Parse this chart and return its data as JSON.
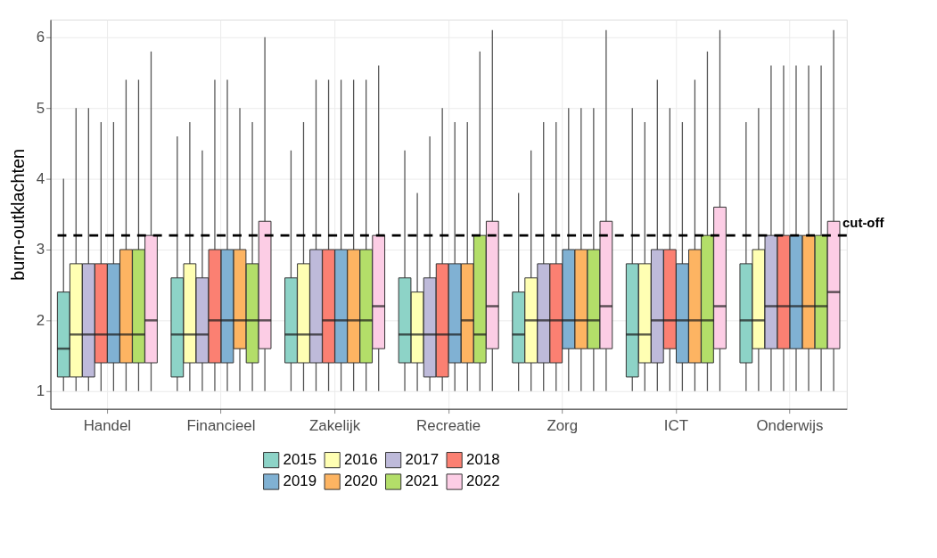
{
  "chart_data": {
    "type": "box",
    "ylabel": "burn-outklachten",
    "categories": [
      "Handel",
      "Financieel",
      "Zakelijk",
      "Recreatie",
      "Zorg",
      "ICT",
      "Onderwijs"
    ],
    "series": [
      {
        "name": "2015",
        "color": "#8dd3c7",
        "boxes": [
          {
            "low": 1.0,
            "q1": 1.2,
            "median": 1.6,
            "q3": 2.4,
            "high": 4.0
          },
          {
            "low": 1.0,
            "q1": 1.2,
            "median": 1.8,
            "q3": 2.6,
            "high": 4.6
          },
          {
            "low": 1.0,
            "q1": 1.4,
            "median": 1.8,
            "q3": 2.6,
            "high": 4.4
          },
          {
            "low": 1.0,
            "q1": 1.4,
            "median": 1.8,
            "q3": 2.6,
            "high": 4.4
          },
          {
            "low": 1.0,
            "q1": 1.4,
            "median": 1.8,
            "q3": 2.4,
            "high": 3.8
          },
          {
            "low": 1.0,
            "q1": 1.2,
            "median": 1.8,
            "q3": 2.8,
            "high": 5.0
          },
          {
            "low": 1.0,
            "q1": 1.4,
            "median": 2.0,
            "q3": 2.8,
            "high": 4.8
          }
        ]
      },
      {
        "name": "2016",
        "color": "#ffffb3",
        "boxes": [
          {
            "low": 1.0,
            "q1": 1.2,
            "median": 1.8,
            "q3": 2.8,
            "high": 5.0
          },
          {
            "low": 1.0,
            "q1": 1.4,
            "median": 1.8,
            "q3": 2.8,
            "high": 4.8
          },
          {
            "low": 1.0,
            "q1": 1.4,
            "median": 1.8,
            "q3": 2.8,
            "high": 4.8
          },
          {
            "low": 1.0,
            "q1": 1.4,
            "median": 1.8,
            "q3": 2.4,
            "high": 3.8
          },
          {
            "low": 1.0,
            "q1": 1.4,
            "median": 2.0,
            "q3": 2.6,
            "high": 4.4
          },
          {
            "low": 1.0,
            "q1": 1.4,
            "median": 1.8,
            "q3": 2.8,
            "high": 4.8
          },
          {
            "low": 1.0,
            "q1": 1.6,
            "median": 2.0,
            "q3": 3.0,
            "high": 5.0
          }
        ]
      },
      {
        "name": "2017",
        "color": "#bebada",
        "boxes": [
          {
            "low": 1.0,
            "q1": 1.2,
            "median": 1.8,
            "q3": 2.8,
            "high": 5.0
          },
          {
            "low": 1.0,
            "q1": 1.4,
            "median": 1.8,
            "q3": 2.6,
            "high": 4.4
          },
          {
            "low": 1.0,
            "q1": 1.4,
            "median": 1.8,
            "q3": 3.0,
            "high": 5.4
          },
          {
            "low": 1.0,
            "q1": 1.2,
            "median": 1.8,
            "q3": 2.6,
            "high": 4.6
          },
          {
            "low": 1.0,
            "q1": 1.4,
            "median": 2.0,
            "q3": 2.8,
            "high": 4.8
          },
          {
            "low": 1.0,
            "q1": 1.4,
            "median": 2.0,
            "q3": 3.0,
            "high": 5.4
          },
          {
            "low": 1.0,
            "q1": 1.6,
            "median": 2.2,
            "q3": 3.2,
            "high": 5.6
          }
        ]
      },
      {
        "name": "2018",
        "color": "#fb8072",
        "boxes": [
          {
            "low": 1.0,
            "q1": 1.4,
            "median": 1.8,
            "q3": 2.8,
            "high": 4.8
          },
          {
            "low": 1.0,
            "q1": 1.4,
            "median": 2.0,
            "q3": 3.0,
            "high": 5.4
          },
          {
            "low": 1.0,
            "q1": 1.4,
            "median": 2.0,
            "q3": 3.0,
            "high": 5.4
          },
          {
            "low": 1.0,
            "q1": 1.2,
            "median": 1.8,
            "q3": 2.8,
            "high": 5.0
          },
          {
            "low": 1.0,
            "q1": 1.4,
            "median": 2.0,
            "q3": 2.8,
            "high": 4.8
          },
          {
            "low": 1.0,
            "q1": 1.6,
            "median": 2.0,
            "q3": 3.0,
            "high": 5.0
          },
          {
            "low": 1.0,
            "q1": 1.6,
            "median": 2.2,
            "q3": 3.2,
            "high": 5.6
          }
        ]
      },
      {
        "name": "2019",
        "color": "#80b1d3",
        "boxes": [
          {
            "low": 1.0,
            "q1": 1.4,
            "median": 1.8,
            "q3": 2.8,
            "high": 4.8
          },
          {
            "low": 1.0,
            "q1": 1.4,
            "median": 2.0,
            "q3": 3.0,
            "high": 5.4
          },
          {
            "low": 1.0,
            "q1": 1.4,
            "median": 2.0,
            "q3": 3.0,
            "high": 5.4
          },
          {
            "low": 1.0,
            "q1": 1.4,
            "median": 1.8,
            "q3": 2.8,
            "high": 4.8
          },
          {
            "low": 1.0,
            "q1": 1.6,
            "median": 2.0,
            "q3": 3.0,
            "high": 5.0
          },
          {
            "low": 1.0,
            "q1": 1.4,
            "median": 2.0,
            "q3": 2.8,
            "high": 4.8
          },
          {
            "low": 1.0,
            "q1": 1.6,
            "median": 2.2,
            "q3": 3.2,
            "high": 5.6
          }
        ]
      },
      {
        "name": "2020",
        "color": "#fdb462",
        "boxes": [
          {
            "low": 1.0,
            "q1": 1.4,
            "median": 1.8,
            "q3": 3.0,
            "high": 5.4
          },
          {
            "low": 1.0,
            "q1": 1.6,
            "median": 2.0,
            "q3": 3.0,
            "high": 5.0
          },
          {
            "low": 1.0,
            "q1": 1.4,
            "median": 2.0,
            "q3": 3.0,
            "high": 5.4
          },
          {
            "low": 1.0,
            "q1": 1.4,
            "median": 2.0,
            "q3": 2.8,
            "high": 4.8
          },
          {
            "low": 1.0,
            "q1": 1.6,
            "median": 2.0,
            "q3": 3.0,
            "high": 5.0
          },
          {
            "low": 1.0,
            "q1": 1.4,
            "median": 2.0,
            "q3": 3.0,
            "high": 5.4
          },
          {
            "low": 1.0,
            "q1": 1.6,
            "median": 2.2,
            "q3": 3.2,
            "high": 5.6
          }
        ]
      },
      {
        "name": "2021",
        "color": "#b3de69",
        "boxes": [
          {
            "low": 1.0,
            "q1": 1.4,
            "median": 1.8,
            "q3": 3.0,
            "high": 5.4
          },
          {
            "low": 1.0,
            "q1": 1.4,
            "median": 2.0,
            "q3": 2.8,
            "high": 4.8
          },
          {
            "low": 1.0,
            "q1": 1.4,
            "median": 2.0,
            "q3": 3.0,
            "high": 5.4
          },
          {
            "low": 1.0,
            "q1": 1.4,
            "median": 1.8,
            "q3": 3.2,
            "high": 5.8
          },
          {
            "low": 1.0,
            "q1": 1.6,
            "median": 2.0,
            "q3": 3.0,
            "high": 5.0
          },
          {
            "low": 1.0,
            "q1": 1.4,
            "median": 2.0,
            "q3": 3.2,
            "high": 5.8
          },
          {
            "low": 1.0,
            "q1": 1.6,
            "median": 2.2,
            "q3": 3.2,
            "high": 5.6
          }
        ]
      },
      {
        "name": "2022",
        "color": "#fccde5",
        "boxes": [
          {
            "low": 1.0,
            "q1": 1.4,
            "median": 2.0,
            "q3": 3.2,
            "high": 5.8
          },
          {
            "low": 1.0,
            "q1": 1.6,
            "median": 2.0,
            "q3": 3.4,
            "high": 6.0
          },
          {
            "low": 1.0,
            "q1": 1.6,
            "median": 2.2,
            "q3": 3.2,
            "high": 5.6
          },
          {
            "low": 1.0,
            "q1": 1.6,
            "median": 2.2,
            "q3": 3.4,
            "high": 6.1
          },
          {
            "low": 1.0,
            "q1": 1.6,
            "median": 2.2,
            "q3": 3.4,
            "high": 6.1
          },
          {
            "low": 1.0,
            "q1": 1.6,
            "median": 2.2,
            "q3": 3.6,
            "high": 6.1
          },
          {
            "low": 1.0,
            "q1": 1.6,
            "median": 2.4,
            "q3": 3.4,
            "high": 6.1
          }
        ]
      }
    ],
    "ylim": [
      0.75,
      6.25
    ],
    "yticks": [
      1,
      2,
      3,
      4,
      5,
      6
    ],
    "grid": true,
    "legend": "bottom",
    "ref_lines": [
      {
        "axis": "y",
        "value": 3.2,
        "label": "cut-off",
        "line_style": "dashed",
        "color": "#000000"
      }
    ]
  }
}
